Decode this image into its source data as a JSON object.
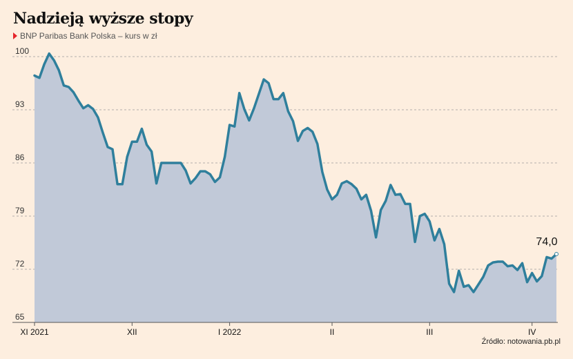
{
  "title": "Nadzieją wyższe stopy",
  "subtitle": "BNP Paribas Bank Polska – kurs w zł",
  "source": "Źródło: notowania.pb.pl",
  "colors": {
    "background": "#fdeedf",
    "line": "#2f7f9c",
    "area": "#c1c9d8",
    "marker": "#e5242a",
    "grid": "#9a9a9a"
  },
  "chart_data": {
    "type": "area",
    "ylim": [
      65,
      100
    ],
    "yticks": [
      65,
      72,
      79,
      86,
      93,
      100
    ],
    "grid": true,
    "xticks": [
      {
        "label": "XI 2021",
        "index": 0
      },
      {
        "label": "XII",
        "index": 20
      },
      {
        "label": "I 2022",
        "index": 40
      },
      {
        "label": "II",
        "index": 61
      },
      {
        "label": "III",
        "index": 81
      },
      {
        "label": "IV",
        "index": 102
      }
    ],
    "last_value_label": "74,0",
    "values": [
      97.5,
      97.2,
      99.0,
      100.4,
      99.5,
      98.2,
      96.2,
      96.0,
      95.3,
      94.2,
      93.2,
      93.6,
      93.1,
      92.0,
      90.0,
      88.1,
      87.8,
      83.2,
      83.2,
      86.8,
      88.8,
      88.8,
      90.5,
      88.4,
      87.5,
      83.3,
      86.0,
      86.0,
      86.0,
      86.0,
      86.0,
      85.0,
      83.3,
      84.0,
      84.9,
      84.9,
      84.5,
      83.5,
      84.1,
      86.8,
      91.0,
      90.8,
      95.2,
      93.1,
      91.6,
      93.2,
      95.1,
      97.0,
      96.5,
      94.4,
      94.4,
      95.2,
      92.8,
      91.5,
      88.9,
      90.2,
      90.6,
      90.1,
      88.5,
      84.8,
      82.5,
      81.2,
      81.8,
      83.3,
      83.6,
      83.2,
      82.6,
      81.2,
      81.8,
      79.7,
      76.2,
      79.8,
      81.0,
      83.1,
      81.8,
      81.9,
      80.6,
      80.6,
      75.6,
      79.0,
      79.3,
      78.3,
      75.8,
      77.3,
      75.3,
      70.1,
      69.0,
      71.8,
      69.7,
      69.9,
      69.0,
      70.0,
      71.0,
      72.5,
      72.9,
      73.0,
      73.0,
      72.4,
      72.5,
      71.9,
      72.8,
      70.3,
      71.5,
      70.4,
      71.1,
      73.6,
      73.4,
      74.0
    ]
  }
}
